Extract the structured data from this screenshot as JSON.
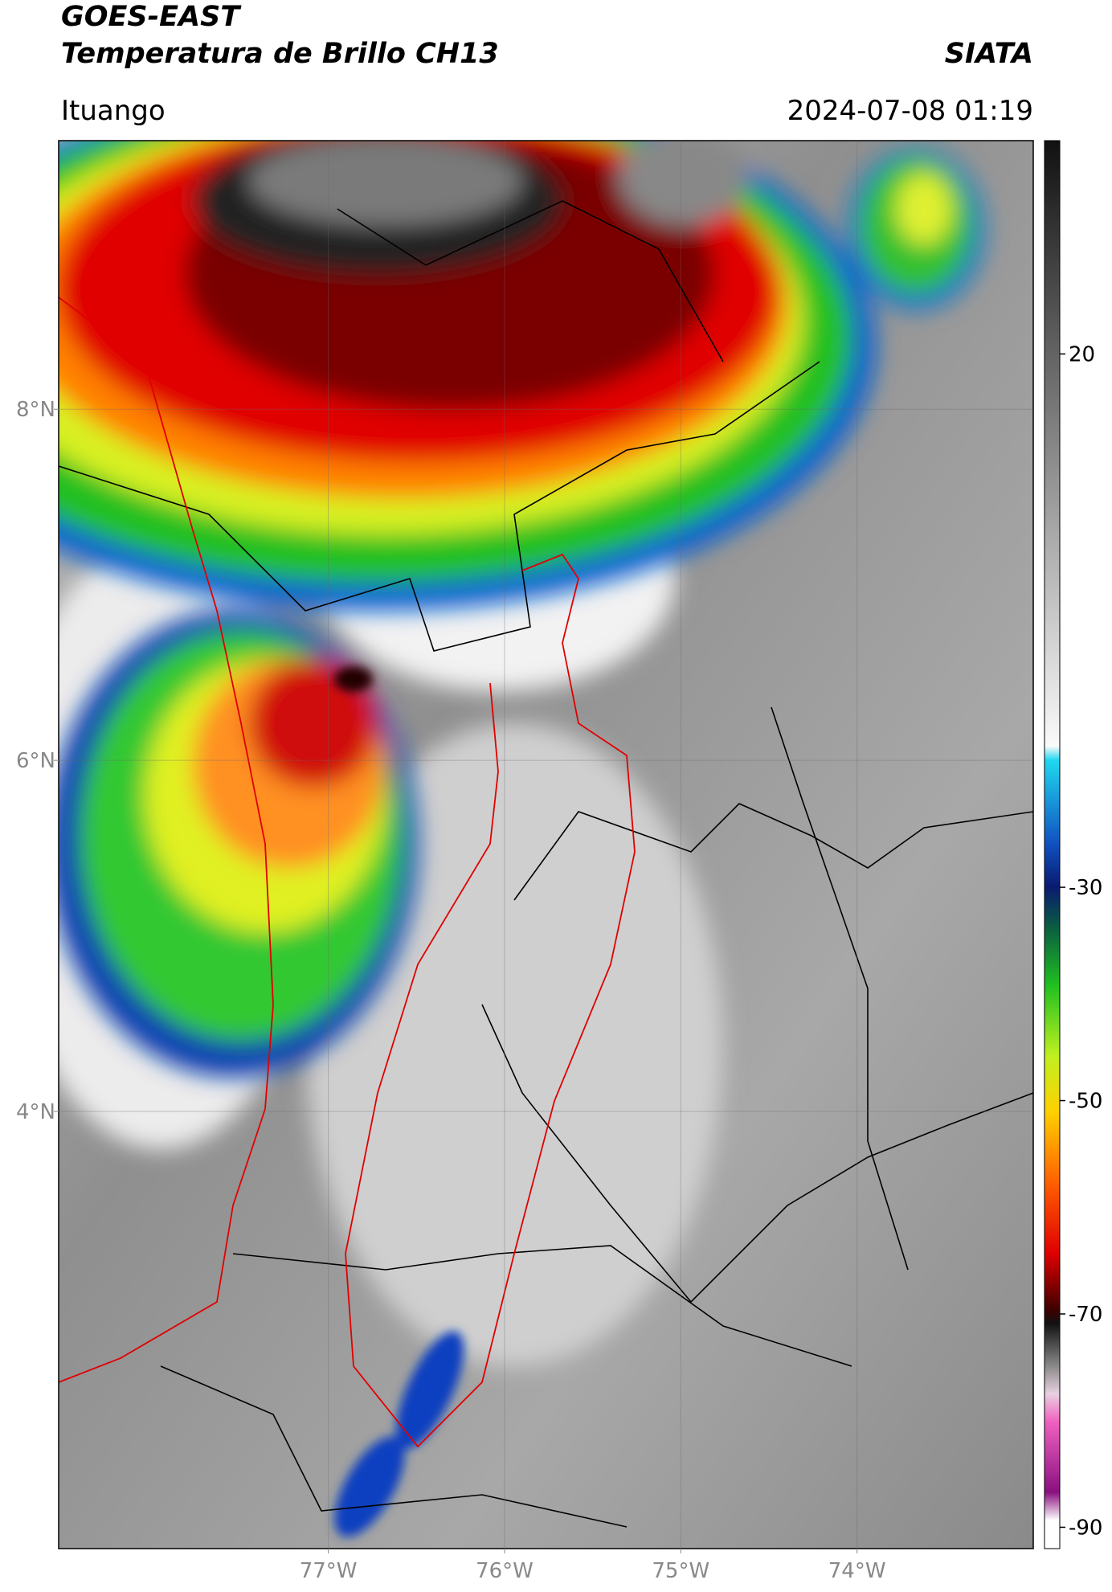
{
  "header": {
    "title": "GOES-EAST",
    "subtitle": "Temperatura de Brillo CH13",
    "source": "SIATA",
    "location": "Ituango",
    "datetime": "2024-07-08 01:19"
  },
  "map": {
    "xlim": [
      -78.53,
      -73.0
    ],
    "ylim": [
      1.51,
      9.53
    ],
    "xticks": [
      {
        "value": -77,
        "label": "77°W"
      },
      {
        "value": -76,
        "label": "76°W"
      },
      {
        "value": -75,
        "label": "75°W"
      },
      {
        "value": -74,
        "label": "74°W"
      }
    ],
    "yticks": [
      {
        "value": 8,
        "label": "8°N"
      },
      {
        "value": 6,
        "label": "6°N"
      },
      {
        "value": 4,
        "label": "4°N"
      }
    ],
    "grid": true,
    "colorbar": {
      "clim": [
        -92,
        40
      ],
      "ticks": [
        20,
        -30,
        -50,
        -70,
        -90
      ]
    }
  }
}
